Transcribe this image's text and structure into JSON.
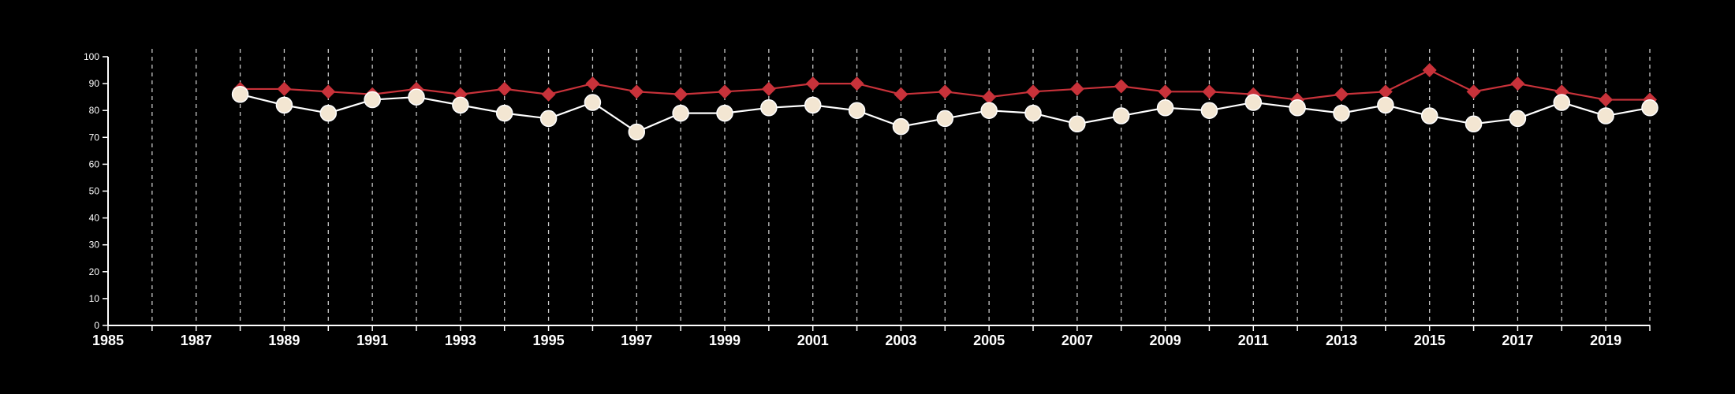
{
  "chart_data": {
    "type": "line",
    "title": "",
    "xlabel": "",
    "ylabel": "",
    "xlim": [
      1985,
      2020
    ],
    "ylim": [
      0,
      100
    ],
    "x_ticks": [
      1985,
      1987,
      1989,
      1991,
      1993,
      1995,
      1997,
      1999,
      2001,
      2003,
      2005,
      2007,
      2009,
      2011,
      2013,
      2015,
      2017,
      2019
    ],
    "y_ticks": [
      0,
      10,
      20,
      30,
      40,
      50,
      60,
      70,
      80,
      90,
      100
    ],
    "vertical_dashed_grid": true,
    "x": [
      1988,
      1989,
      1990,
      1991,
      1992,
      1993,
      1994,
      1995,
      1996,
      1997,
      1998,
      1999,
      2000,
      2001,
      2002,
      2003,
      2004,
      2005,
      2006,
      2007,
      2008,
      2009,
      2010,
      2011,
      2012,
      2013,
      2014,
      2015,
      2016,
      2017,
      2018,
      2019,
      2020
    ],
    "series": [
      {
        "marker": "diamond",
        "color": "#c8323a",
        "values": [
          88,
          88,
          87,
          86,
          88,
          86,
          88,
          86,
          90,
          87,
          86,
          87,
          88,
          90,
          90,
          86,
          87,
          85,
          87,
          88,
          89,
          87,
          87,
          86,
          84,
          86,
          87,
          95,
          87,
          90,
          87,
          84,
          84
        ]
      },
      {
        "marker": "circle",
        "color": "#ffffff",
        "fill": "#f3e6d2",
        "values": [
          86,
          82,
          79,
          84,
          85,
          82,
          79,
          77,
          83,
          72,
          79,
          79,
          81,
          82,
          80,
          74,
          77,
          80,
          79,
          75,
          78,
          81,
          80,
          83,
          81,
          79,
          82,
          78,
          75,
          77,
          83,
          78,
          81
        ]
      }
    ]
  }
}
